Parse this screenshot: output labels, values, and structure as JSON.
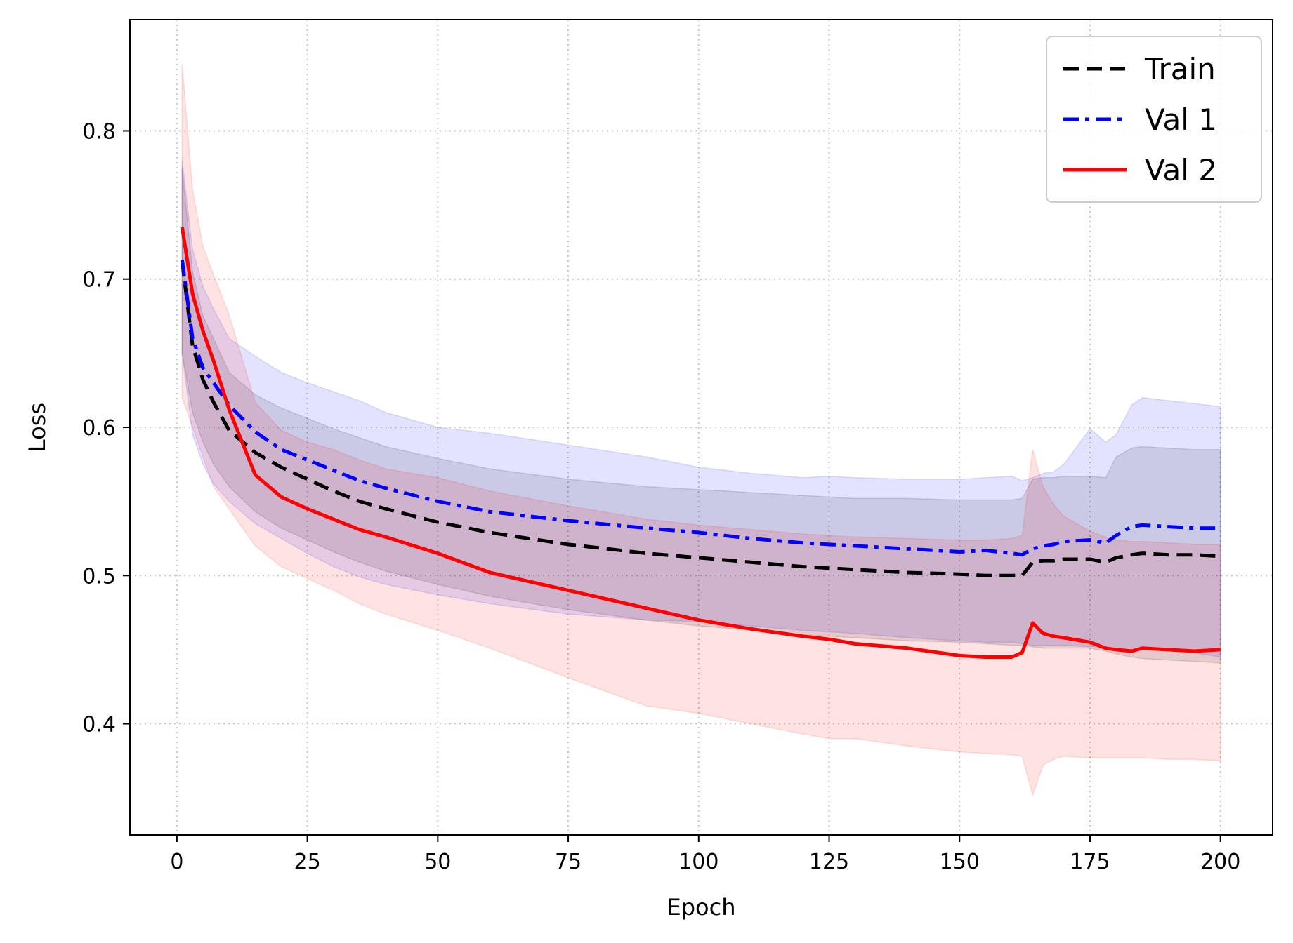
{
  "chart_data": {
    "type": "line",
    "xlabel": "Epoch",
    "ylabel": "Loss",
    "xlim": [
      -9,
      210
    ],
    "ylim": [
      0.325,
      0.875
    ],
    "x_ticks": [
      0,
      25,
      50,
      75,
      100,
      125,
      150,
      175,
      200
    ],
    "y_ticks": [
      0.4,
      0.5,
      0.6,
      0.7,
      0.8
    ],
    "grid": true,
    "legend_position": "top-right",
    "x": [
      1,
      3,
      5,
      7,
      10,
      15,
      20,
      25,
      30,
      35,
      40,
      50,
      60,
      75,
      90,
      100,
      110,
      120,
      125,
      130,
      140,
      150,
      155,
      160,
      162,
      164,
      166,
      168,
      170,
      175,
      178,
      180,
      183,
      185,
      190,
      195,
      200
    ],
    "series": [
      {
        "name": "Train",
        "color": "#000000",
        "style": "dashed",
        "values": [
          0.712,
          0.655,
          0.632,
          0.617,
          0.598,
          0.583,
          0.573,
          0.565,
          0.557,
          0.55,
          0.545,
          0.536,
          0.529,
          0.521,
          0.515,
          0.512,
          0.509,
          0.506,
          0.505,
          0.504,
          0.502,
          0.501,
          0.5,
          0.5,
          0.5,
          0.509,
          0.51,
          0.51,
          0.511,
          0.511,
          0.509,
          0.512,
          0.514,
          0.515,
          0.514,
          0.514,
          0.513
        ],
        "band_lower": [
          0.65,
          0.61,
          0.59,
          0.575,
          0.56,
          0.543,
          0.532,
          0.524,
          0.516,
          0.509,
          0.503,
          0.494,
          0.486,
          0.477,
          0.47,
          0.466,
          0.463,
          0.46,
          0.459,
          0.458,
          0.456,
          0.455,
          0.454,
          0.453,
          0.453,
          0.452,
          0.451,
          0.451,
          0.451,
          0.451,
          0.449,
          0.447,
          0.445,
          0.444,
          0.443,
          0.442,
          0.441
        ],
        "band_upper": [
          0.775,
          0.705,
          0.675,
          0.66,
          0.637,
          0.622,
          0.613,
          0.606,
          0.599,
          0.593,
          0.587,
          0.579,
          0.572,
          0.565,
          0.56,
          0.558,
          0.556,
          0.554,
          0.553,
          0.552,
          0.552,
          0.551,
          0.551,
          0.551,
          0.552,
          0.565,
          0.566,
          0.566,
          0.567,
          0.567,
          0.566,
          0.58,
          0.586,
          0.587,
          0.586,
          0.585,
          0.585
        ]
      },
      {
        "name": "Val 1",
        "color": "#0000ff",
        "style": "dashdot",
        "values": [
          0.713,
          0.66,
          0.64,
          0.63,
          0.615,
          0.597,
          0.585,
          0.578,
          0.571,
          0.564,
          0.559,
          0.55,
          0.543,
          0.537,
          0.532,
          0.529,
          0.525,
          0.522,
          0.521,
          0.52,
          0.518,
          0.516,
          0.517,
          0.515,
          0.514,
          0.518,
          0.52,
          0.521,
          0.523,
          0.524,
          0.522,
          0.527,
          0.533,
          0.534,
          0.533,
          0.532,
          0.532
        ],
        "band_lower": [
          0.65,
          0.595,
          0.575,
          0.562,
          0.55,
          0.535,
          0.525,
          0.515,
          0.506,
          0.499,
          0.494,
          0.487,
          0.481,
          0.474,
          0.47,
          0.469,
          0.466,
          0.463,
          0.462,
          0.461,
          0.458,
          0.456,
          0.455,
          0.455,
          0.454,
          0.453,
          0.453,
          0.453,
          0.453,
          0.452,
          0.452,
          0.45,
          0.45,
          0.45,
          0.45,
          0.448,
          0.445
        ],
        "band_upper": [
          0.78,
          0.72,
          0.695,
          0.68,
          0.66,
          0.648,
          0.637,
          0.63,
          0.624,
          0.618,
          0.61,
          0.6,
          0.596,
          0.588,
          0.58,
          0.573,
          0.569,
          0.566,
          0.567,
          0.566,
          0.565,
          0.565,
          0.566,
          0.567,
          0.564,
          0.566,
          0.569,
          0.57,
          0.575,
          0.599,
          0.59,
          0.595,
          0.615,
          0.62,
          0.618,
          0.616,
          0.614
        ]
      },
      {
        "name": "Val 2",
        "color": "#ff0000",
        "style": "solid",
        "values": [
          0.735,
          0.69,
          0.665,
          0.645,
          0.612,
          0.568,
          0.553,
          0.545,
          0.538,
          0.531,
          0.526,
          0.515,
          0.502,
          0.49,
          0.478,
          0.47,
          0.464,
          0.459,
          0.457,
          0.454,
          0.451,
          0.446,
          0.445,
          0.445,
          0.448,
          0.468,
          0.461,
          0.459,
          0.458,
          0.455,
          0.451,
          0.45,
          0.449,
          0.451,
          0.45,
          0.449,
          0.45
        ],
        "band_lower": [
          0.62,
          0.6,
          0.58,
          0.56,
          0.545,
          0.52,
          0.506,
          0.498,
          0.49,
          0.481,
          0.474,
          0.463,
          0.451,
          0.431,
          0.412,
          0.407,
          0.4,
          0.393,
          0.39,
          0.39,
          0.385,
          0.381,
          0.38,
          0.379,
          0.378,
          0.352,
          0.372,
          0.376,
          0.378,
          0.377,
          0.377,
          0.377,
          0.377,
          0.377,
          0.376,
          0.376,
          0.375
        ],
        "band_upper": [
          0.845,
          0.76,
          0.722,
          0.703,
          0.676,
          0.617,
          0.598,
          0.59,
          0.585,
          0.578,
          0.572,
          0.566,
          0.557,
          0.547,
          0.538,
          0.534,
          0.531,
          0.528,
          0.527,
          0.526,
          0.525,
          0.524,
          0.524,
          0.525,
          0.527,
          0.585,
          0.56,
          0.548,
          0.54,
          0.53,
          0.526,
          0.524,
          0.523,
          0.523,
          0.522,
          0.521,
          0.521
        ]
      }
    ]
  }
}
